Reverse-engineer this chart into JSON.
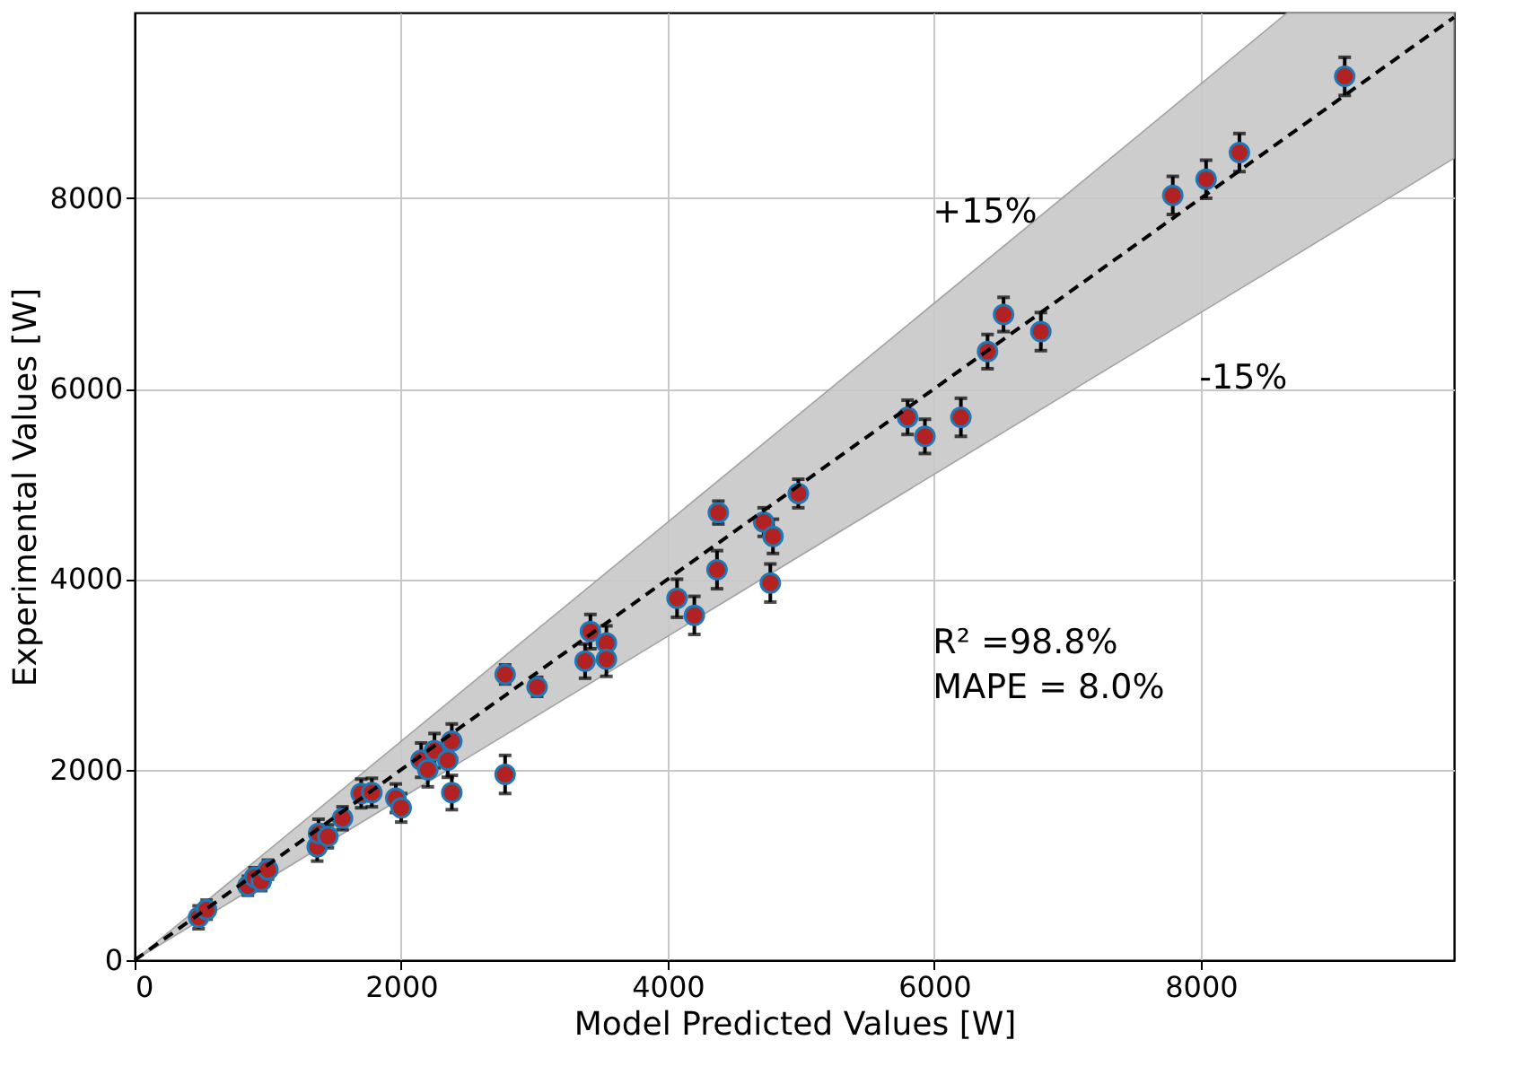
{
  "chart_data": {
    "type": "scatter",
    "xlabel": "Model Predicted Values [W]",
    "ylabel": "Experimental Values [W]",
    "xlim": [
      0,
      9900
    ],
    "ylim": [
      0,
      9950
    ],
    "xticks": [
      0,
      2000,
      4000,
      6000,
      8000
    ],
    "yticks": [
      0,
      2000,
      4000,
      6000,
      8000
    ],
    "grid": true,
    "marker": "circle",
    "series": [
      {
        "color": "#b22222",
        "x": [
          480,
          540,
          850,
          900,
          950,
          1000,
          1370,
          1380,
          1450,
          1560,
          1700,
          1780,
          1960,
          2000,
          2150,
          2200,
          2250,
          2350,
          2380,
          2380,
          2780,
          2780,
          3020,
          3380,
          3420,
          3540,
          3540,
          4070,
          4200,
          4370,
          4380,
          4720,
          4790,
          4770,
          4980,
          5800,
          5930,
          6200,
          6400,
          6520,
          6800,
          7790,
          8040,
          8290,
          9080
        ],
        "values": [
          450,
          530,
          780,
          870,
          830,
          950,
          1190,
          1330,
          1300,
          1490,
          1750,
          1760,
          1700,
          1600,
          2100,
          2000,
          2200,
          2100,
          2300,
          1760,
          1950,
          3000,
          2870,
          3140,
          3450,
          3330,
          3160,
          3800,
          3620,
          4100,
          4700,
          4600,
          4450,
          3960,
          4900,
          5700,
          5500,
          5700,
          6390,
          6780,
          6600,
          8030,
          8200,
          8480,
          9280
        ],
        "errors": [
          120,
          100,
          100,
          100,
          100,
          100,
          150,
          150,
          120,
          120,
          150,
          150,
          150,
          150,
          180,
          180,
          180,
          180,
          180,
          180,
          200,
          100,
          100,
          180,
          180,
          180,
          180,
          200,
          200,
          200,
          120,
          150,
          180,
          200,
          150,
          180,
          180,
          200,
          180,
          180,
          200,
          200,
          200,
          200,
          200
        ]
      },
      {
        "type": "line",
        "color": "#000000",
        "line_style": "dashed",
        "marker": "none",
        "x": [
          0,
          7350,
          8650,
          9900
        ],
        "values": [
          0,
          7350,
          8650,
          9900
        ],
        "lower": [
          0,
          6250,
          7350,
          8420
        ],
        "upper": [
          0,
          8450,
          9950,
          9950
        ]
      }
    ],
    "annotations": [
      "+15%",
      "-15%",
      "R² =98.8%",
      "MAPE = 8.0%"
    ]
  }
}
